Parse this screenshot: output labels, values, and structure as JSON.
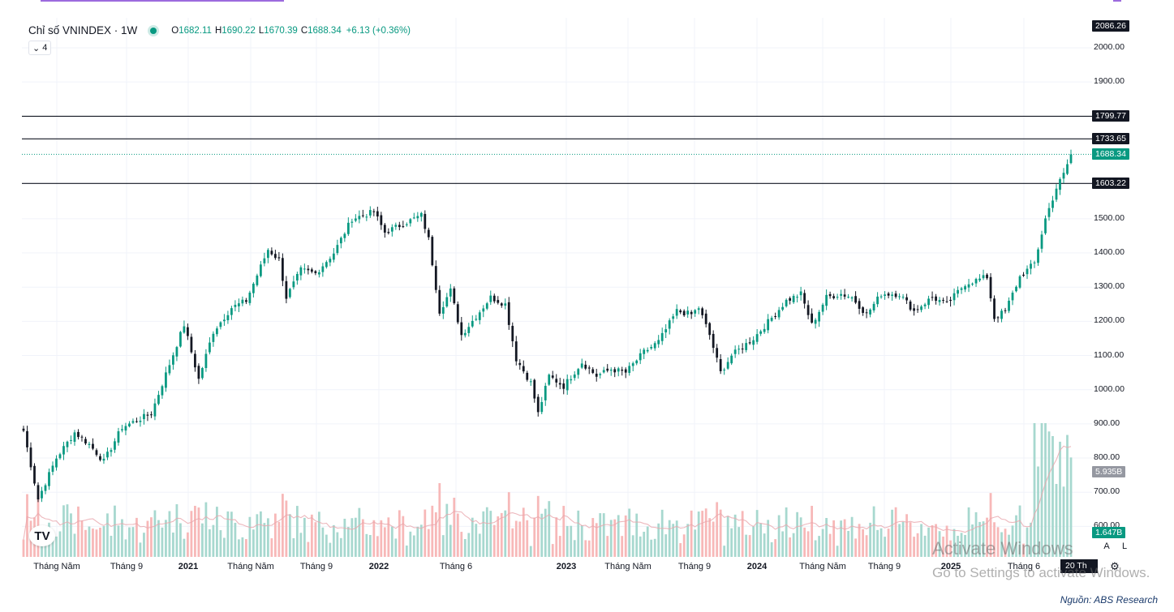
{
  "legend": {
    "title": "Chỉ số VNINDEX · 1W",
    "o_key": "O",
    "o_val": "1682.11",
    "h_key": "H",
    "h_val": "1690.22",
    "l_key": "L",
    "l_val": "1670.39",
    "c_key": "C",
    "c_val": "1688.34",
    "change": "+6.13 (+0.36%)",
    "collapse_count": "4"
  },
  "price_axis": [
    "2000.00",
    "1900.00",
    "1500.00",
    "1400.00",
    "1300.00",
    "1200.00",
    "1100.00",
    "1000.00",
    "900.00",
    "800.00",
    "700.00",
    "600.00"
  ],
  "price_tags": {
    "top": "2086.26",
    "level1": "1799.77",
    "level2": "1733.65",
    "current": "1688.34",
    "level3": "1603.22",
    "volume": "5.935B",
    "volume_ma": "1.647B"
  },
  "time_axis": [
    {
      "label": "Tháng Năm",
      "bold": false
    },
    {
      "label": "Tháng 9",
      "bold": false
    },
    {
      "label": "2021",
      "bold": true
    },
    {
      "label": "Tháng Năm",
      "bold": false
    },
    {
      "label": "Tháng 9",
      "bold": false
    },
    {
      "label": "2022",
      "bold": true
    },
    {
      "label": "Tháng 6",
      "bold": false
    },
    {
      "label": "2023",
      "bold": true
    },
    {
      "label": "Tháng Năm",
      "bold": false
    },
    {
      "label": "Tháng 9",
      "bold": false
    },
    {
      "label": "2024",
      "bold": true
    },
    {
      "label": "Tháng Năm",
      "bold": false
    },
    {
      "label": "Tháng 9",
      "bold": false
    },
    {
      "label": "2025",
      "bold": true
    },
    {
      "label": "Tháng 6",
      "bold": false
    }
  ],
  "current_time_label": "20 Th",
  "buttons": {
    "auto": "A",
    "log": "L"
  },
  "logo": "TV",
  "watermark": {
    "line1": "Activate Windows",
    "line2": "Go to Settings to activate Windows."
  },
  "source": "Nguồn: ABS Research",
  "colors": {
    "up": "#089981",
    "down": "#131722",
    "vol_up": "#a7d8cf",
    "vol_down": "#f7b8b8",
    "accent": "#9c6ade"
  },
  "chart_data": {
    "type": "candlestick",
    "title": "Chỉ số VNINDEX · 1W",
    "interval": "1W",
    "ylim": [
      600,
      2100
    ],
    "horizontal_levels": [
      1799.77,
      1733.65,
      1603.22
    ],
    "last_close": 1688.34,
    "grid": true,
    "close_anchors": [
      {
        "date": "2020-03-02",
        "close": 880
      },
      {
        "date": "2020-03-30",
        "close": 680
      },
      {
        "date": "2020-05-04",
        "close": 800
      },
      {
        "date": "2020-06-08",
        "close": 875
      },
      {
        "date": "2020-07-06",
        "close": 840
      },
      {
        "date": "2020-08-03",
        "close": 790
      },
      {
        "date": "2020-09-07",
        "close": 890
      },
      {
        "date": "2020-11-02",
        "close": 930
      },
      {
        "date": "2021-01-04",
        "close": 1190
      },
      {
        "date": "2021-02-01",
        "close": 1030
      },
      {
        "date": "2021-03-01",
        "close": 1170
      },
      {
        "date": "2021-04-05",
        "close": 1240
      },
      {
        "date": "2021-05-03",
        "close": 1260
      },
      {
        "date": "2021-06-14",
        "close": 1410
      },
      {
        "date": "2021-07-05",
        "close": 1380
      },
      {
        "date": "2021-07-19",
        "close": 1270
      },
      {
        "date": "2021-08-16",
        "close": 1350
      },
      {
        "date": "2021-09-13",
        "close": 1340
      },
      {
        "date": "2021-10-18",
        "close": 1400
      },
      {
        "date": "2021-11-22",
        "close": 1500
      },
      {
        "date": "2022-01-03",
        "close": 1520
      },
      {
        "date": "2022-01-24",
        "close": 1460
      },
      {
        "date": "2022-03-07",
        "close": 1490
      },
      {
        "date": "2022-04-04",
        "close": 1510
      },
      {
        "date": "2022-04-18",
        "close": 1440
      },
      {
        "date": "2022-05-09",
        "close": 1230
      },
      {
        "date": "2022-05-30",
        "close": 1290
      },
      {
        "date": "2022-06-20",
        "close": 1160
      },
      {
        "date": "2022-08-15",
        "close": 1270
      },
      {
        "date": "2022-09-12",
        "close": 1250
      },
      {
        "date": "2022-10-03",
        "close": 1090
      },
      {
        "date": "2022-10-31",
        "close": 1020
      },
      {
        "date": "2022-11-14",
        "close": 930
      },
      {
        "date": "2022-12-05",
        "close": 1040
      },
      {
        "date": "2023-01-02",
        "close": 1010
      },
      {
        "date": "2023-02-06",
        "close": 1080
      },
      {
        "date": "2023-03-06",
        "close": 1040
      },
      {
        "date": "2023-04-03",
        "close": 1060
      },
      {
        "date": "2023-05-01",
        "close": 1050
      },
      {
        "date": "2023-06-05",
        "close": 1110
      },
      {
        "date": "2023-07-03",
        "close": 1140
      },
      {
        "date": "2023-08-07",
        "close": 1230
      },
      {
        "date": "2023-09-04",
        "close": 1220
      },
      {
        "date": "2023-09-18",
        "close": 1240
      },
      {
        "date": "2023-10-09",
        "close": 1160
      },
      {
        "date": "2023-10-30",
        "close": 1050
      },
      {
        "date": "2023-11-20",
        "close": 1100
      },
      {
        "date": "2024-01-01",
        "close": 1150
      },
      {
        "date": "2024-02-05",
        "close": 1210
      },
      {
        "date": "2024-03-04",
        "close": 1260
      },
      {
        "date": "2024-04-01",
        "close": 1280
      },
      {
        "date": "2024-04-22",
        "close": 1190
      },
      {
        "date": "2024-05-20",
        "close": 1270
      },
      {
        "date": "2024-06-17",
        "close": 1280
      },
      {
        "date": "2024-07-08",
        "close": 1270
      },
      {
        "date": "2024-08-05",
        "close": 1220
      },
      {
        "date": "2024-09-02",
        "close": 1280
      },
      {
        "date": "2024-10-07",
        "close": 1280
      },
      {
        "date": "2024-11-04",
        "close": 1230
      },
      {
        "date": "2024-12-09",
        "close": 1270
      },
      {
        "date": "2025-01-06",
        "close": 1250
      },
      {
        "date": "2025-02-10",
        "close": 1310
      },
      {
        "date": "2025-03-24",
        "close": 1330
      },
      {
        "date": "2025-04-07",
        "close": 1210
      },
      {
        "date": "2025-04-28",
        "close": 1230
      },
      {
        "date": "2025-05-26",
        "close": 1330
      },
      {
        "date": "2025-06-23",
        "close": 1370
      },
      {
        "date": "2025-07-14",
        "close": 1500
      },
      {
        "date": "2025-08-04",
        "close": 1590
      },
      {
        "date": "2025-08-18",
        "close": 1630
      },
      {
        "date": "2025-09-01",
        "close": 1688.34
      }
    ]
  }
}
